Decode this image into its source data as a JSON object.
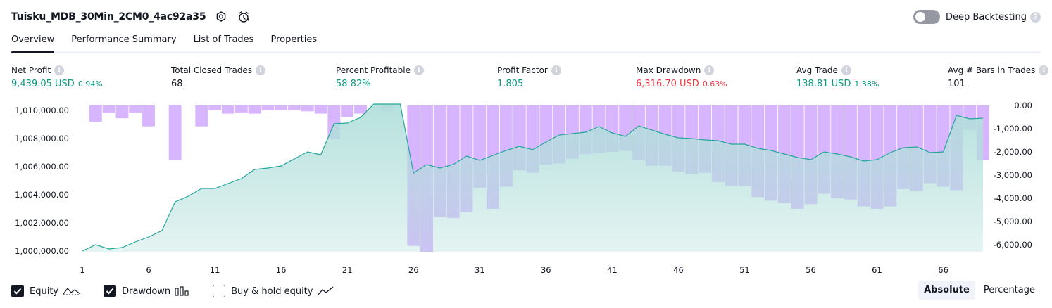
{
  "header": {
    "title": "Tuisku_MDB_30Min_2CM0_4ac92a35",
    "deep_backtesting_label": "Deep Backtesting",
    "deep_backtesting_on": false,
    "help_glyph": "?"
  },
  "tabs": [
    {
      "label": "Overview",
      "active": true
    },
    {
      "label": "Performance Summary",
      "active": false
    },
    {
      "label": "List of Trades",
      "active": false
    },
    {
      "label": "Properties",
      "active": false
    }
  ],
  "metrics": [
    {
      "label": "Net Profit",
      "value": "9,439.05 USD",
      "pct": "0.94%",
      "color": "green"
    },
    {
      "label": "Total Closed Trades",
      "value": "68",
      "pct": "",
      "color": "dark"
    },
    {
      "label": "Percent Profitable",
      "value": "58.82%",
      "pct": "",
      "color": "green"
    },
    {
      "label": "Profit Factor",
      "value": "1.805",
      "pct": "",
      "color": "green"
    },
    {
      "label": "Max Drawdown",
      "value": "6,316.70 USD",
      "pct": "0.63%",
      "color": "red"
    },
    {
      "label": "Avg Trade",
      "value": "138.81 USD",
      "pct": "1.38%",
      "color": "green"
    },
    {
      "label": "Avg # Bars in Trades",
      "value": "101",
      "pct": "",
      "color": "dark"
    }
  ],
  "info_glyph": "i",
  "colors": {
    "green": "#089981",
    "red": "#f23645",
    "equity_line": "#26a69a",
    "equity_fill": "#b2dfdb",
    "drawdown_bar": "#d1a8ff"
  },
  "chart_data": {
    "type": "line",
    "left_axis": {
      "ticks": [
        "1,010,000.00",
        "1,008,000.00",
        "1,006,000.00",
        "1,004,000.00",
        "1,002,000.00",
        "1,000,000.00"
      ],
      "tick_values": [
        1010000,
        1008000,
        1006000,
        1004000,
        1002000,
        1000000
      ],
      "range": [
        999950,
        1010350
      ]
    },
    "right_axis": {
      "ticks": [
        "0.00",
        "-1,000.00",
        "-2,000.00",
        "-3,000.00",
        "-4,000.00",
        "-5,000.00",
        "-6,000.00"
      ],
      "tick_values": [
        0,
        -1000,
        -2000,
        -3000,
        -4000,
        -5000,
        -6000
      ],
      "range": [
        -6300,
        0
      ]
    },
    "x_ticks": [
      1,
      6,
      11,
      16,
      21,
      26,
      31,
      36,
      41,
      46,
      51,
      56,
      61,
      66
    ],
    "x_range": [
      1,
      69
    ],
    "series": [
      {
        "name": "Equity",
        "type": "area",
        "x": [
          1,
          2,
          3,
          4,
          5,
          6,
          7,
          8,
          9,
          10,
          11,
          12,
          13,
          14,
          15,
          16,
          17,
          18,
          19,
          20,
          21,
          22,
          23,
          24,
          25,
          26,
          27,
          28,
          29,
          30,
          31,
          32,
          33,
          34,
          35,
          36,
          37,
          38,
          39,
          40,
          41,
          42,
          43,
          44,
          45,
          46,
          47,
          48,
          49,
          50,
          51,
          52,
          53,
          54,
          55,
          56,
          57,
          58,
          59,
          60,
          61,
          62,
          63,
          64,
          65,
          66,
          67,
          68,
          69
        ],
        "values": [
          1000000,
          1000450,
          1000150,
          1000250,
          1000650,
          1001000,
          1001450,
          1003500,
          1003900,
          1004450,
          1004450,
          1004800,
          1005150,
          1005800,
          1005900,
          1006050,
          1006550,
          1007050,
          1006850,
          1009050,
          1009100,
          1009500,
          1010450,
          1010450,
          1010450,
          1005550,
          1006150,
          1005900,
          1006150,
          1006750,
          1006450,
          1006800,
          1007150,
          1007450,
          1007200,
          1007750,
          1008250,
          1008350,
          1008450,
          1008850,
          1008400,
          1008150,
          1008900,
          1008600,
          1008300,
          1008050,
          1008000,
          1007900,
          1007850,
          1007600,
          1007600,
          1007300,
          1007150,
          1006900,
          1006650,
          1006500,
          1007050,
          1006900,
          1006700,
          1006400,
          1006500,
          1007000,
          1007350,
          1007400,
          1007000,
          1007050,
          1009650,
          1009400,
          1009450
        ]
      },
      {
        "name": "Drawdown",
        "type": "bar",
        "x": [
          1,
          2,
          3,
          4,
          5,
          6,
          7,
          8,
          9,
          10,
          11,
          12,
          13,
          14,
          15,
          16,
          17,
          18,
          19,
          20,
          21,
          22,
          23,
          24,
          25,
          26,
          27,
          28,
          29,
          30,
          31,
          32,
          33,
          34,
          35,
          36,
          37,
          38,
          39,
          40,
          41,
          42,
          43,
          44,
          45,
          46,
          47,
          48,
          49,
          50,
          51,
          52,
          53,
          54,
          55,
          56,
          57,
          58,
          59,
          60,
          61,
          62,
          63,
          64,
          65,
          66,
          67,
          68,
          69
        ],
        "values": [
          0,
          -700,
          -300,
          -550,
          -300,
          -900,
          0,
          -2350,
          0,
          -900,
          -200,
          -350,
          -300,
          -350,
          -200,
          -200,
          -200,
          -250,
          -350,
          -1450,
          -500,
          -350,
          0,
          -250,
          0,
          -6050,
          -6300,
          -4800,
          -4850,
          -4600,
          -3550,
          -4450,
          -3500,
          -2800,
          -2900,
          -2550,
          -2500,
          -2300,
          -2100,
          -2050,
          -2000,
          -1950,
          -2350,
          -2600,
          -2600,
          -2850,
          -2950,
          -2900,
          -3300,
          -3450,
          -3450,
          -3950,
          -4100,
          -4200,
          -4450,
          -4250,
          -3800,
          -4000,
          -4050,
          -4350,
          -4450,
          -4350,
          -3600,
          -3700,
          -3350,
          -3500,
          -3650,
          -1050,
          -2350
        ]
      },
      {
        "name": "Buy & hold equity",
        "type": "line",
        "visible": false,
        "values": []
      }
    ]
  },
  "legend": [
    {
      "label": "Equity",
      "checked": true,
      "icon": "equity-line-icon"
    },
    {
      "label": "Drawdown",
      "checked": true,
      "icon": "drawdown-bars-icon"
    },
    {
      "label": "Buy & hold equity",
      "checked": false,
      "icon": "buy-hold-line-icon"
    }
  ],
  "mode_buttons": [
    {
      "label": "Absolute",
      "active": true
    },
    {
      "label": "Percentage",
      "active": false
    }
  ]
}
